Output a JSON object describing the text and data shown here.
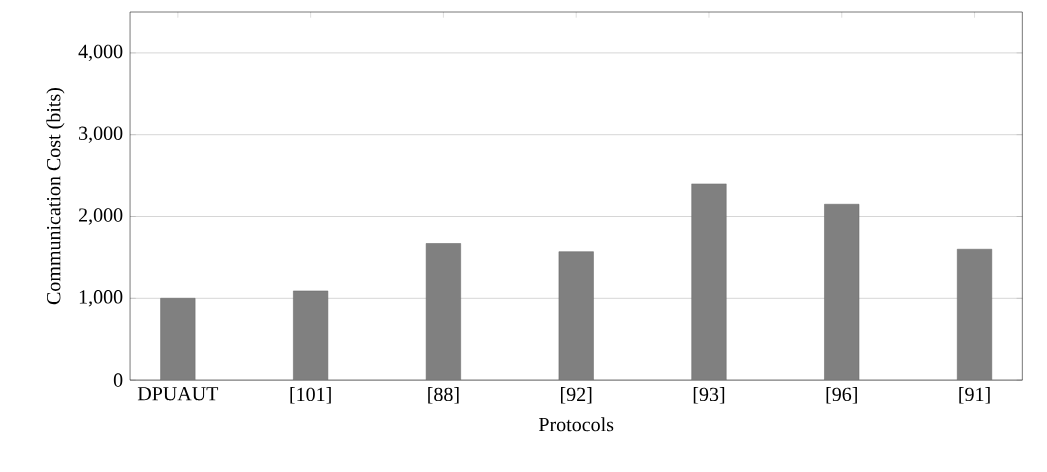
{
  "chart_data": {
    "type": "bar",
    "xlabel": "Protocols",
    "ylabel": "Communication Cost (bits)",
    "categories": [
      "DPUAUT",
      "[101]",
      "[88]",
      "[92]",
      "[93]",
      "[96]",
      "[91]"
    ],
    "values": [
      1000,
      1090,
      1670,
      1570,
      2400,
      2150,
      1600
    ],
    "color": "#808080",
    "ylim": [
      0,
      4500
    ],
    "yticks": [
      {
        "value": 0,
        "label": "0"
      },
      {
        "value": 1000,
        "label": "1,000"
      },
      {
        "value": 2000,
        "label": "2,000"
      },
      {
        "value": 3000,
        "label": "3,000"
      },
      {
        "value": 4000,
        "label": "4,000"
      }
    ],
    "grid": "y"
  }
}
